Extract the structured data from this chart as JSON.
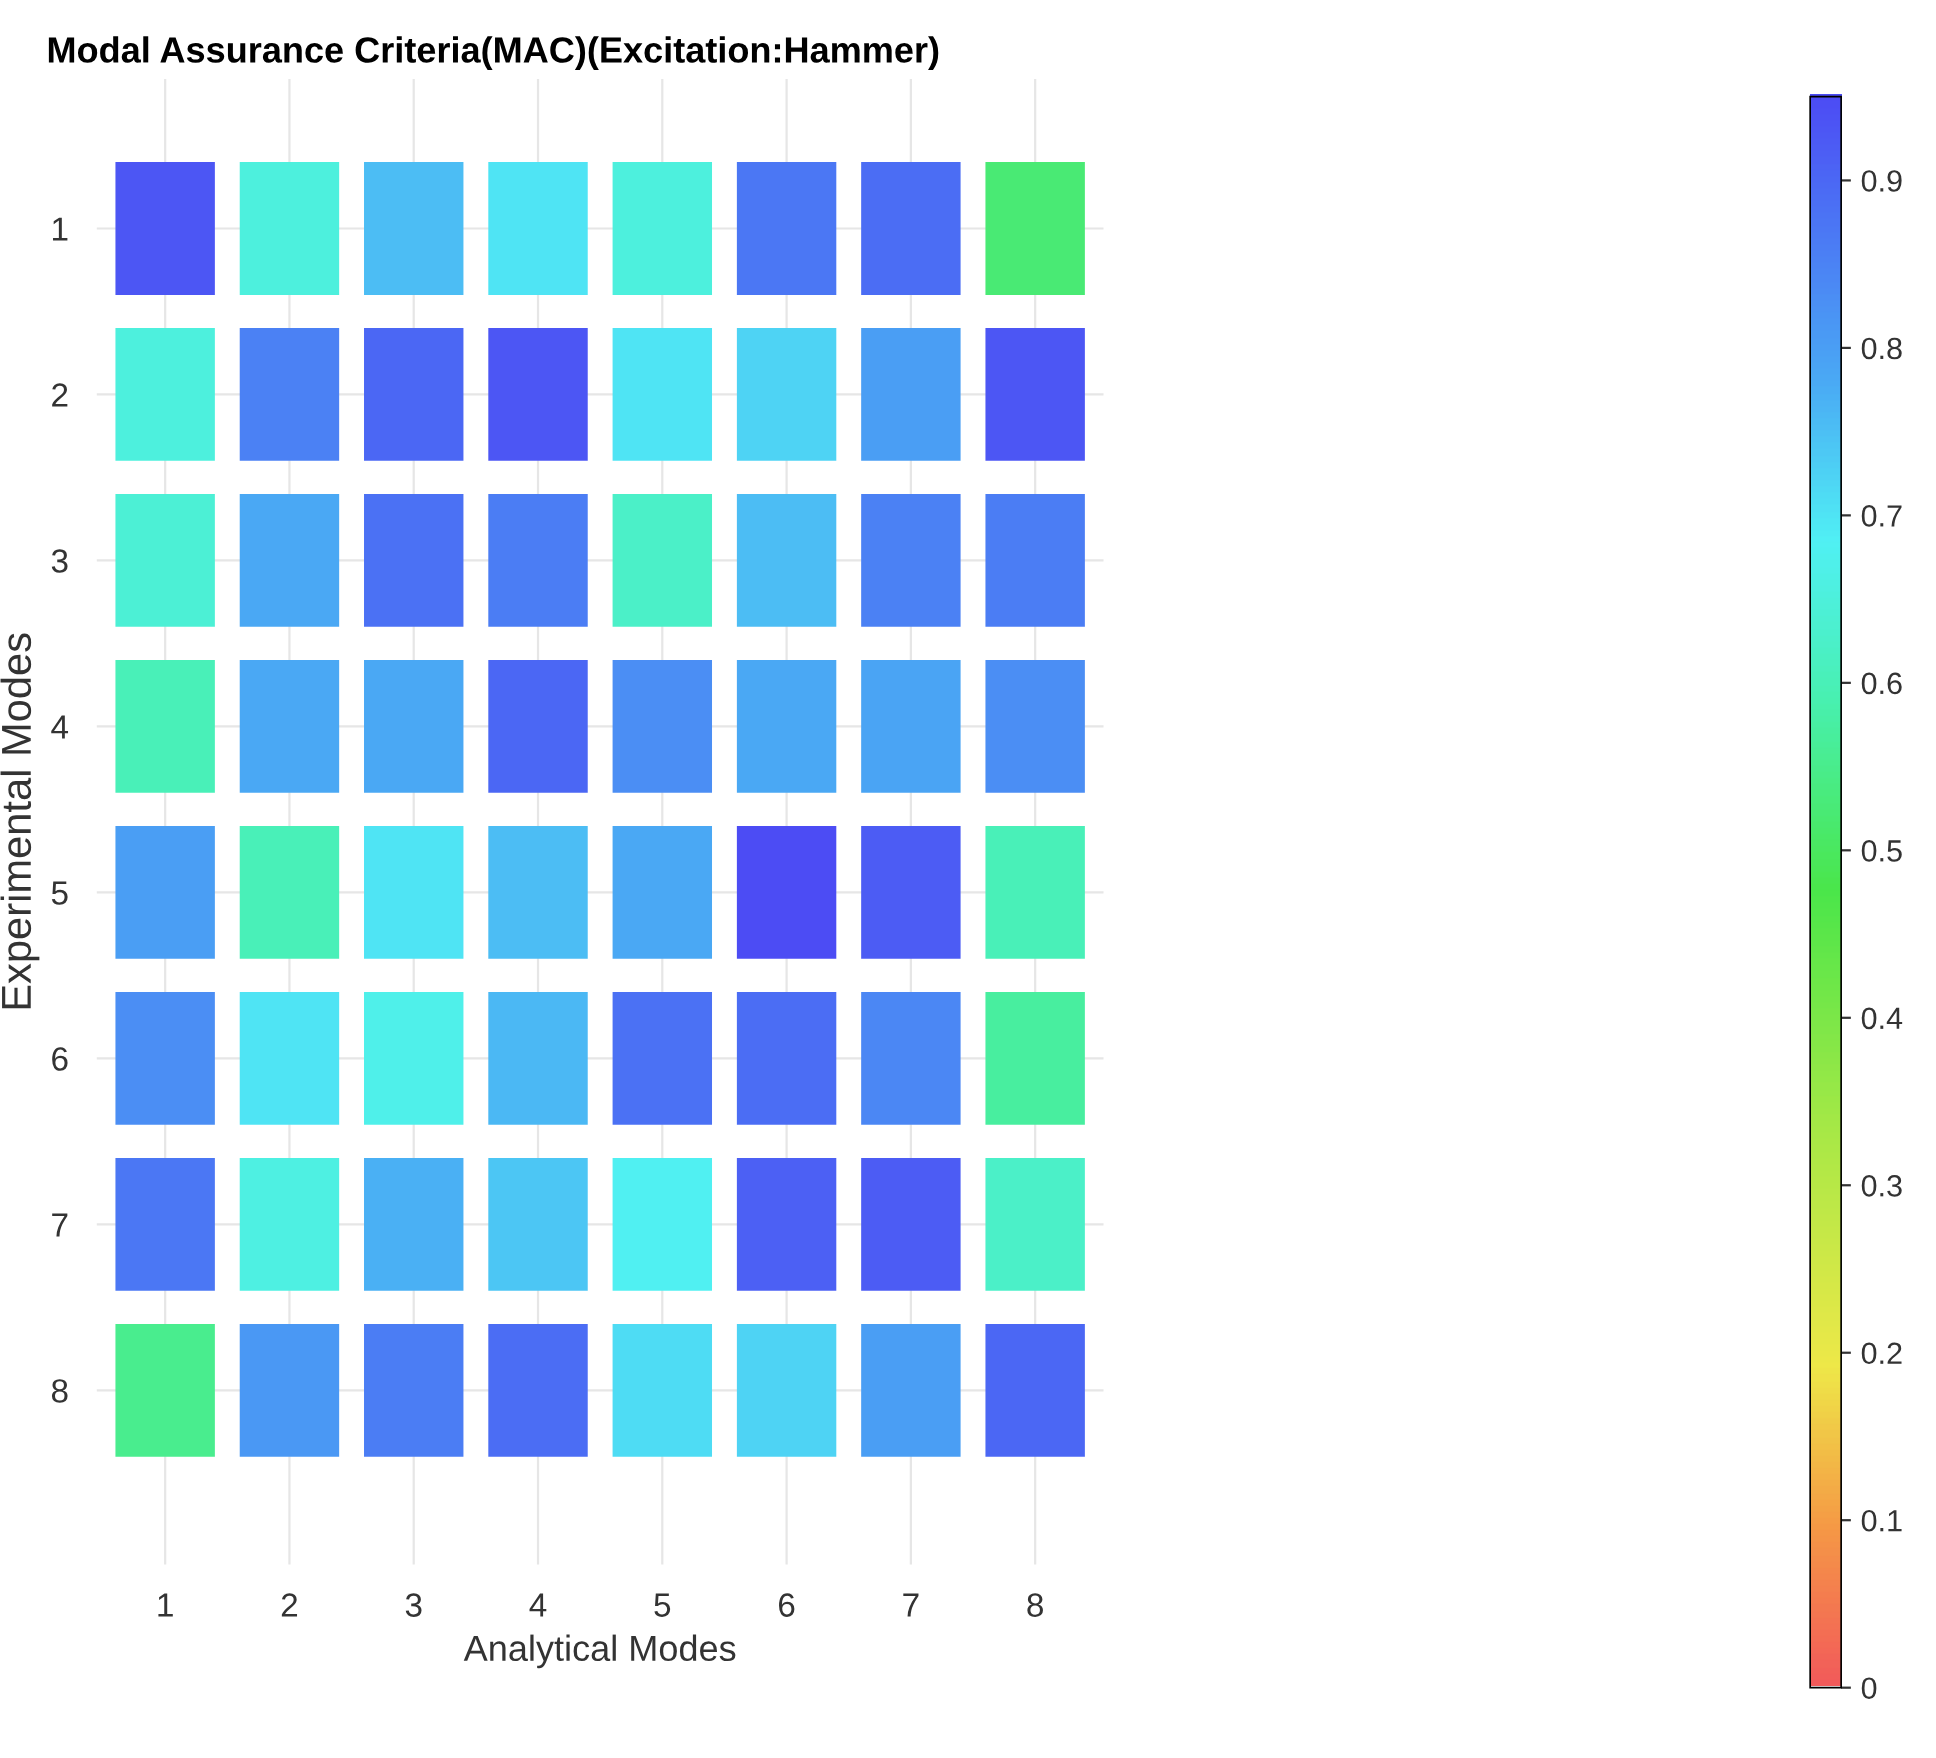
{
  "chart_data": {
    "type": "heatmap",
    "title": "Modal Assurance Criteria(MAC)(Excitation:Hammer)",
    "xlabel": "Analytical Modes",
    "ylabel": "Experimental Modes",
    "categories": [
      "1",
      "2",
      "3",
      "4",
      "5",
      "6",
      "7",
      "8"
    ],
    "y_categories": [
      "1",
      "2",
      "3",
      "4",
      "5",
      "6",
      "7",
      "8"
    ],
    "cells": [
      [
        0.93,
        0.65,
        0.75,
        0.7,
        0.65,
        0.87,
        0.89,
        0.52
      ],
      [
        0.65,
        0.85,
        0.9,
        0.93,
        0.7,
        0.72,
        0.8,
        0.93
      ],
      [
        0.64,
        0.78,
        0.88,
        0.86,
        0.62,
        0.75,
        0.85,
        0.86
      ],
      [
        0.6,
        0.78,
        0.78,
        0.9,
        0.83,
        0.78,
        0.79,
        0.83
      ],
      [
        0.8,
        0.6,
        0.7,
        0.75,
        0.78,
        0.95,
        0.92,
        0.6
      ],
      [
        0.83,
        0.7,
        0.67,
        0.76,
        0.88,
        0.89,
        0.84,
        0.57
      ],
      [
        0.87,
        0.66,
        0.77,
        0.74,
        0.68,
        0.91,
        0.92,
        0.62
      ],
      [
        0.55,
        0.81,
        0.86,
        0.89,
        0.71,
        0.72,
        0.8,
        0.9
      ]
    ],
    "clim": [
      0,
      0.95
    ],
    "cticks": [
      0,
      0.1,
      0.2,
      0.3,
      0.4,
      0.5,
      0.6,
      0.7,
      0.8,
      0.9
    ],
    "grid": true
  }
}
